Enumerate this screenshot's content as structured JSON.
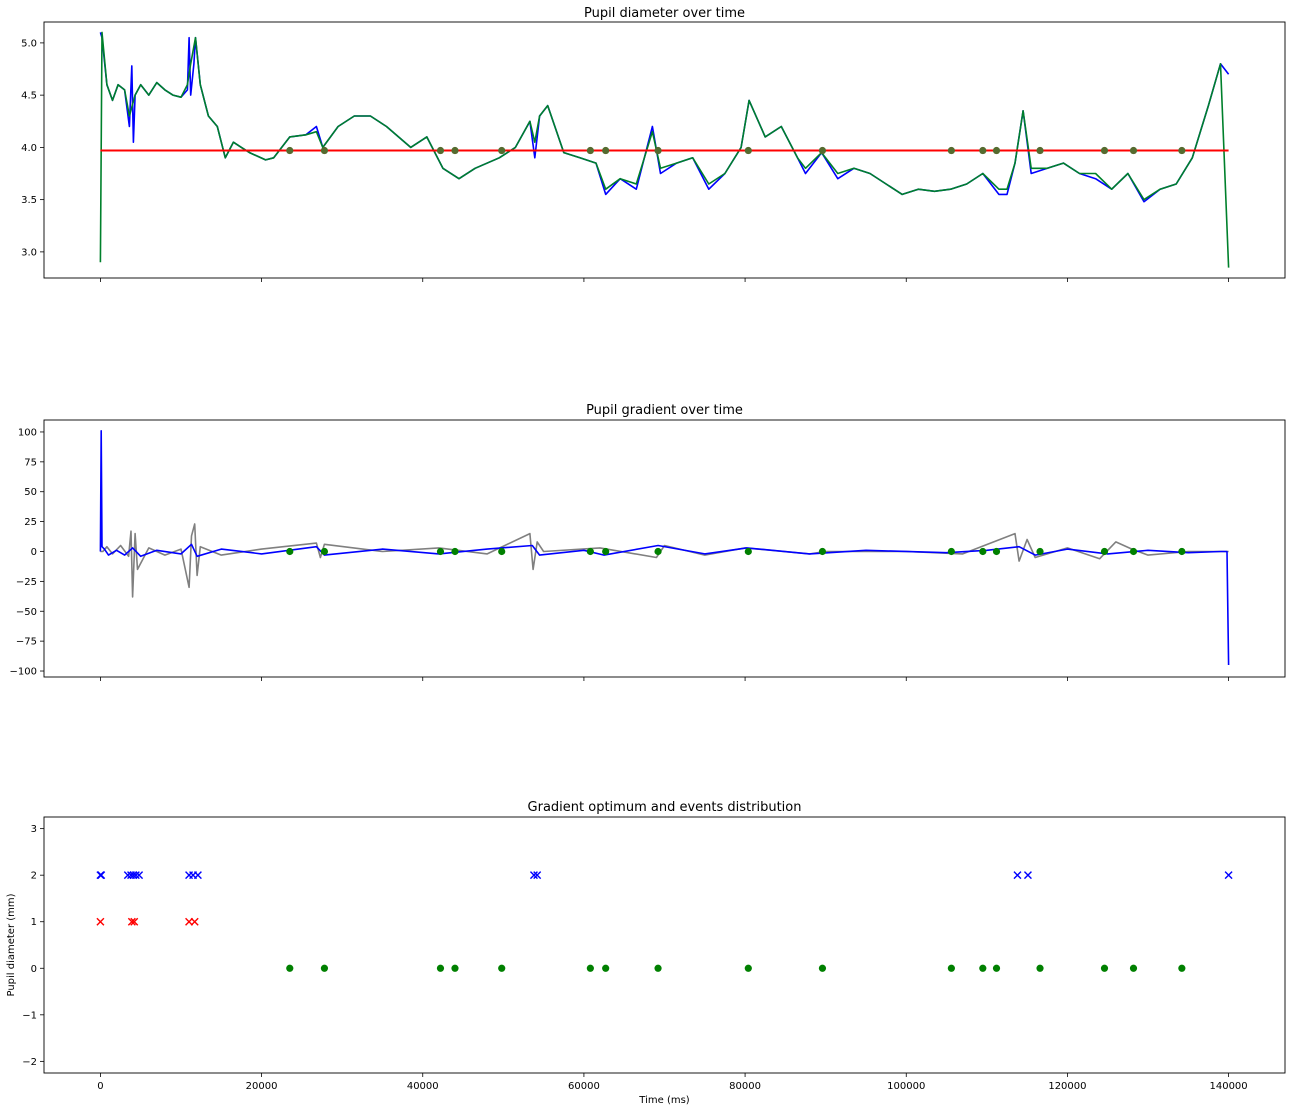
{
  "chart_data": [
    {
      "type": "line",
      "title": "Pupil diameter over time",
      "xlabel": "",
      "ylabel": "",
      "xlim": [
        -7000,
        147000
      ],
      "ylim": [
        2.75,
        5.2
      ],
      "yticks": [
        3.0,
        3.5,
        4.0,
        4.5,
        5.0
      ],
      "ytick_labels": [
        "3.0",
        "3.5",
        "4.0",
        "4.5",
        "5.0"
      ],
      "xticks": [
        0,
        20000,
        40000,
        60000,
        80000,
        100000,
        120000,
        140000
      ],
      "xtick_labels_visible": false,
      "grid": false,
      "threshold": {
        "value": 3.97,
        "color": "#ff0000"
      },
      "series": [
        {
          "role": "raw",
          "color": "#0000ff",
          "x": [
            0,
            200,
            800,
            1500,
            2200,
            3000,
            3600,
            3900,
            4100,
            4300,
            5000,
            6000,
            7000,
            8000,
            9000,
            10000,
            10800,
            11000,
            11200,
            11600,
            11800,
            12400,
            13400,
            14500,
            15500,
            16500,
            17500,
            18500,
            20500,
            21500,
            23500,
            25500,
            26800,
            27600,
            29500,
            31500,
            33500,
            35500,
            38500,
            40500,
            42500,
            44500,
            46500,
            49500,
            51500,
            53300,
            53900,
            54500,
            55500,
            57500,
            59500,
            61500,
            62700,
            64500,
            66500,
            68500,
            69500,
            71500,
            73500,
            75500,
            77500,
            79500,
            80500,
            82500,
            84500,
            86500,
            87500,
            89500,
            91500,
            93500,
            95500,
            97500,
            99500,
            101500,
            103500,
            105500,
            107500,
            109500,
            111500,
            112500,
            113500,
            114500,
            115500,
            117500,
            119500,
            121500,
            123500,
            125500,
            127500,
            129500,
            131500,
            133500,
            135500,
            137500,
            139000,
            140000
          ],
          "y": [
            5.1,
            5.05,
            4.6,
            4.45,
            4.6,
            4.55,
            4.2,
            4.78,
            4.05,
            4.5,
            4.6,
            4.5,
            4.62,
            4.55,
            4.5,
            4.48,
            4.55,
            5.05,
            4.5,
            4.8,
            5.05,
            4.6,
            4.3,
            4.2,
            3.9,
            4.05,
            4.0,
            3.95,
            3.88,
            3.9,
            4.1,
            4.12,
            4.2,
            4.0,
            4.2,
            4.3,
            4.3,
            4.2,
            4.0,
            4.1,
            3.8,
            3.7,
            3.8,
            3.9,
            4.0,
            4.25,
            3.9,
            4.3,
            4.4,
            3.95,
            3.9,
            3.85,
            3.55,
            3.7,
            3.6,
            4.2,
            3.75,
            3.85,
            3.9,
            3.6,
            3.75,
            4.0,
            4.45,
            4.1,
            4.2,
            3.9,
            3.75,
            3.95,
            3.7,
            3.8,
            3.75,
            3.65,
            3.55,
            3.6,
            3.58,
            3.6,
            3.65,
            3.75,
            3.55,
            3.55,
            3.85,
            4.35,
            3.75,
            3.8,
            3.85,
            3.75,
            3.7,
            3.6,
            3.75,
            3.48,
            3.6,
            3.65,
            3.9,
            4.4,
            4.8,
            4.7
          ]
        },
        {
          "role": "smoothed",
          "color": "#00802b",
          "x": [
            0,
            200,
            800,
            1500,
            2200,
            3000,
            3600,
            4300,
            5000,
            6000,
            7000,
            8000,
            9000,
            10000,
            10800,
            11200,
            11800,
            12400,
            13400,
            14500,
            15500,
            16500,
            17500,
            18500,
            20500,
            21500,
            23500,
            25500,
            26800,
            27600,
            29500,
            31500,
            33500,
            35500,
            38500,
            40500,
            42500,
            44500,
            46500,
            49500,
            51500,
            53300,
            53900,
            54500,
            55500,
            57500,
            59500,
            61500,
            62700,
            64500,
            66500,
            68500,
            69500,
            71500,
            73500,
            75500,
            77500,
            79500,
            80500,
            82500,
            84500,
            86500,
            87500,
            89500,
            91500,
            93500,
            95500,
            97500,
            99500,
            101500,
            103500,
            105500,
            107500,
            109500,
            111500,
            112500,
            113500,
            114500,
            115500,
            117500,
            119500,
            121500,
            123500,
            125500,
            127500,
            129500,
            131500,
            133500,
            135500,
            137500,
            139000,
            140000
          ],
          "y": [
            2.9,
            5.1,
            4.6,
            4.45,
            4.6,
            4.55,
            4.3,
            4.5,
            4.6,
            4.5,
            4.62,
            4.55,
            4.5,
            4.48,
            4.6,
            4.8,
            5.05,
            4.6,
            4.3,
            4.2,
            3.9,
            4.05,
            4.0,
            3.95,
            3.88,
            3.9,
            4.1,
            4.12,
            4.15,
            4.0,
            4.2,
            4.3,
            4.3,
            4.2,
            4.0,
            4.1,
            3.8,
            3.7,
            3.8,
            3.9,
            4.0,
            4.25,
            4.05,
            4.3,
            4.4,
            3.95,
            3.9,
            3.85,
            3.6,
            3.7,
            3.65,
            4.15,
            3.8,
            3.85,
            3.9,
            3.65,
            3.75,
            4.0,
            4.45,
            4.1,
            4.2,
            3.9,
            3.8,
            3.95,
            3.75,
            3.8,
            3.75,
            3.65,
            3.55,
            3.6,
            3.58,
            3.6,
            3.65,
            3.75,
            3.6,
            3.6,
            3.85,
            4.35,
            3.8,
            3.8,
            3.85,
            3.75,
            3.75,
            3.6,
            3.75,
            3.5,
            3.6,
            3.65,
            3.9,
            4.4,
            4.8,
            2.85
          ]
        }
      ],
      "markers": {
        "color": "#556b2f",
        "y": 3.97,
        "x": [
          23500,
          27800,
          42200,
          44000,
          49800,
          60800,
          62700,
          69200,
          80400,
          89600,
          105600,
          109500,
          111200,
          116600,
          124600,
          128200,
          134200
        ]
      }
    },
    {
      "type": "line",
      "title": "Pupil gradient over time",
      "xlabel": "",
      "ylabel": "",
      "xlim": [
        -7000,
        147000
      ],
      "ylim": [
        -105,
        110
      ],
      "yticks": [
        -100,
        -75,
        -50,
        -25,
        0,
        25,
        50,
        75,
        100
      ],
      "ytick_labels": [
        "−100",
        "−75",
        "−50",
        "−25",
        "0",
        "25",
        "50",
        "75",
        "100"
      ],
      "xticks": [
        0,
        20000,
        40000,
        60000,
        80000,
        100000,
        120000,
        140000
      ],
      "xtick_labels_visible": false,
      "grid": false,
      "series": [
        {
          "role": "raw-gradient",
          "color": "#808080",
          "x": [
            0,
            300,
            800,
            1500,
            2500,
            3500,
            3800,
            4000,
            4300,
            4600,
            6000,
            8000,
            10000,
            11000,
            11300,
            11700,
            12000,
            12400,
            15000,
            20000,
            26800,
            27300,
            27800,
            35000,
            42000,
            48000,
            53300,
            53700,
            54200,
            55000,
            62000,
            69000,
            70000,
            75000,
            80000,
            88000,
            90000,
            100000,
            107000,
            113500,
            114000,
            115000,
            116000,
            120000,
            124000,
            126000,
            128000,
            130000,
            135000,
            139000,
            140000
          ],
          "y": [
            0,
            0,
            4,
            -2,
            5,
            -4,
            17,
            -38,
            15,
            -15,
            3,
            -3,
            2,
            -30,
            13,
            23,
            -20,
            4,
            -3,
            2,
            7,
            -5,
            6,
            0,
            3,
            -2,
            15,
            -15,
            8,
            0,
            3,
            -5,
            5,
            -3,
            3,
            -2,
            0,
            0,
            -2,
            15,
            -8,
            10,
            -5,
            3,
            -6,
            8,
            2,
            -3,
            0,
            0,
            0
          ]
        },
        {
          "role": "smoothed-gradient",
          "color": "#0000ff",
          "x": [
            0,
            100,
            200,
            500,
            1000,
            2000,
            3000,
            4000,
            5000,
            7000,
            10000,
            11300,
            12000,
            15000,
            20000,
            26800,
            27800,
            35000,
            42000,
            48000,
            53600,
            54500,
            60000,
            62500,
            69200,
            75000,
            80200,
            88000,
            95000,
            105000,
            110000,
            114000,
            116000,
            120000,
            125000,
            130000,
            135000,
            139000,
            139800,
            140000
          ],
          "y": [
            0,
            101,
            4,
            2,
            -3,
            1,
            -3,
            3,
            -4,
            1,
            -2,
            6,
            -4,
            2,
            -2,
            4,
            -3,
            2,
            -2,
            2,
            5,
            -3,
            1,
            -3,
            5,
            -2,
            3,
            -2,
            1,
            -1,
            1,
            4,
            -3,
            2,
            -2,
            1,
            -1,
            0,
            0,
            -95
          ]
        }
      ],
      "markers": {
        "color": "#008000",
        "y": 0,
        "x": [
          23500,
          27800,
          42200,
          44000,
          49800,
          60800,
          62700,
          69200,
          80400,
          89600,
          105600,
          109500,
          111200,
          116600,
          124600,
          128200,
          134200
        ]
      }
    },
    {
      "type": "scatter",
      "title": "Gradient optimum and events distribution",
      "xlabel": "Time (ms)",
      "ylabel": "Pupil diameter (mm)",
      "xlim": [
        -7000,
        147000
      ],
      "ylim": [
        -2.25,
        3.25
      ],
      "yticks": [
        -2,
        -1,
        0,
        1,
        2,
        3
      ],
      "ytick_labels": [
        "−2",
        "−1",
        "0",
        "1",
        "2",
        "3"
      ],
      "xticks": [
        0,
        20000,
        40000,
        60000,
        80000,
        100000,
        120000,
        140000
      ],
      "xtick_labels": [
        "0",
        "20000",
        "40000",
        "60000",
        "80000",
        "100000",
        "120000",
        "140000"
      ],
      "grid": false,
      "series": [
        {
          "marker": "x",
          "color": "#0000ff",
          "y": 2,
          "x": [
            0,
            100,
            3400,
            3800,
            4100,
            4400,
            4800,
            11000,
            11500,
            12100,
            53800,
            54200,
            113800,
            115100,
            140000
          ]
        },
        {
          "marker": "x",
          "color": "#ff0000",
          "y": 1,
          "x": [
            0,
            3900,
            4200,
            11000,
            11700
          ]
        },
        {
          "marker": "o",
          "color": "#008000",
          "y": 0,
          "x": [
            23500,
            27800,
            42200,
            44000,
            49800,
            60800,
            62700,
            69200,
            80400,
            89600,
            105600,
            109500,
            111200,
            116600,
            124600,
            128200,
            134200
          ]
        }
      ]
    }
  ]
}
